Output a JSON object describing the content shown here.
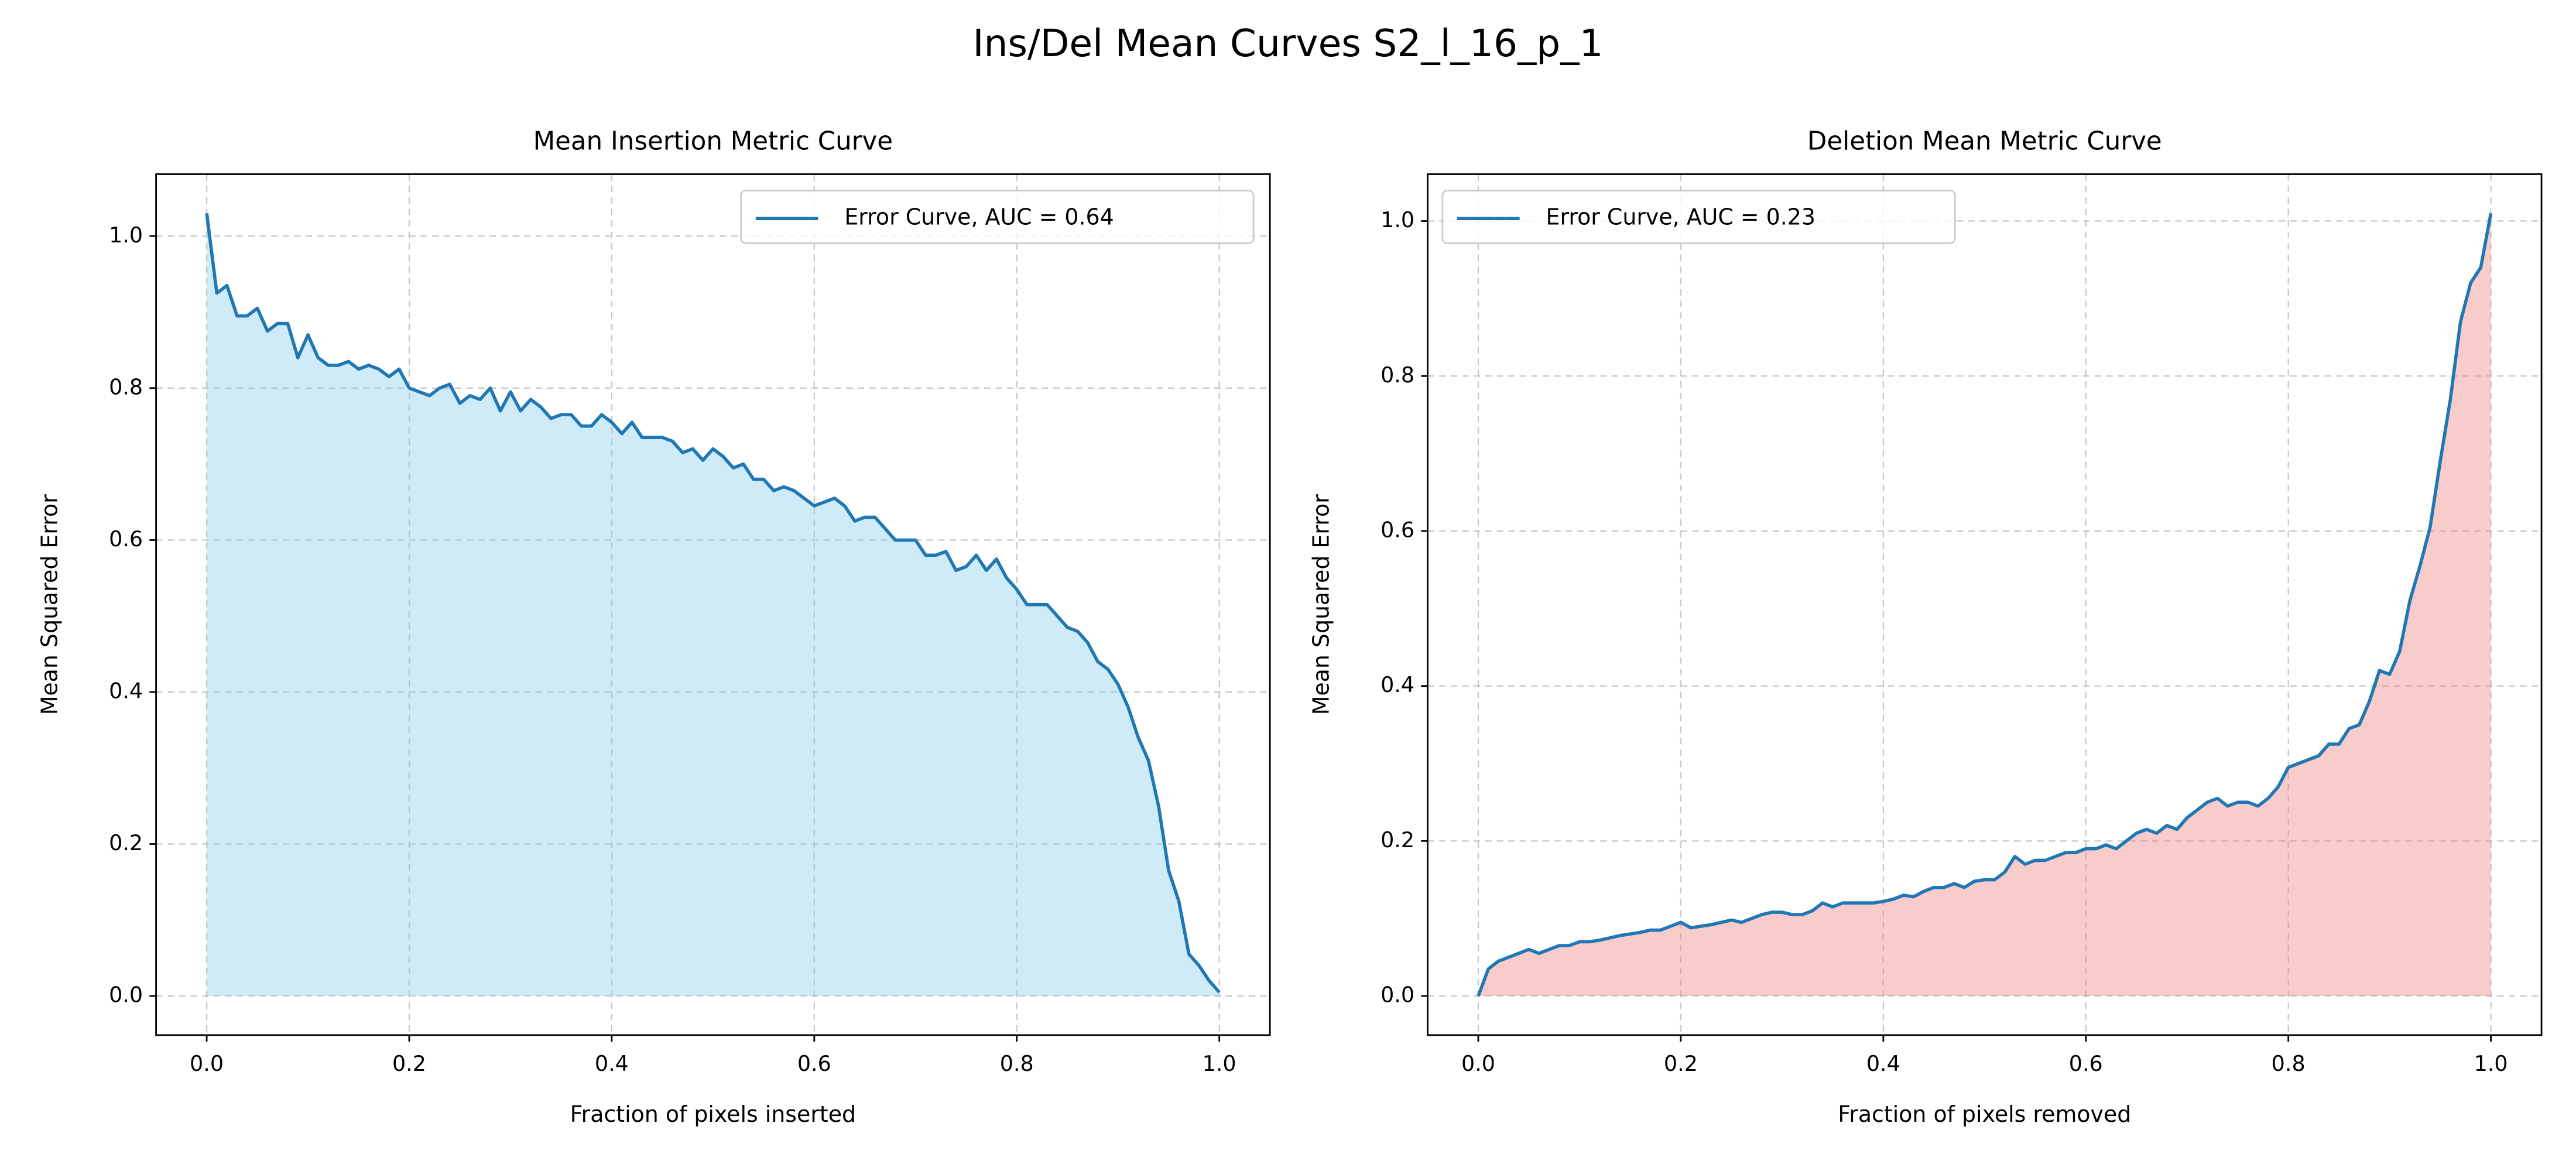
{
  "title": "Ins/Del Mean Curves S2_l_16_p_1",
  "chart_data": [
    {
      "type": "line",
      "title": "Mean Insertion Metric Curve",
      "x_label": "Fraction of pixels inserted",
      "y_label": "Mean Squared Error",
      "x": [
        0,
        0.01,
        0.02,
        0.03,
        0.04,
        0.05,
        0.06,
        0.07,
        0.08,
        0.09,
        0.1,
        0.11,
        0.12,
        0.13,
        0.14,
        0.15,
        0.16,
        0.17,
        0.18,
        0.19,
        0.2,
        0.21,
        0.22,
        0.23,
        0.24,
        0.25,
        0.26,
        0.27,
        0.28,
        0.29,
        0.3,
        0.31,
        0.32,
        0.33,
        0.34,
        0.35,
        0.36,
        0.37,
        0.38,
        0.39,
        0.4,
        0.41,
        0.42,
        0.43,
        0.44,
        0.45,
        0.46,
        0.47,
        0.48,
        0.49,
        0.5,
        0.51,
        0.52,
        0.53,
        0.54,
        0.55,
        0.56,
        0.57,
        0.58,
        0.59,
        0.6,
        0.61,
        0.62,
        0.63,
        0.64,
        0.65,
        0.66,
        0.67,
        0.68,
        0.69,
        0.7,
        0.71,
        0.72,
        0.73,
        0.74,
        0.75,
        0.76,
        0.77,
        0.78,
        0.79,
        0.8,
        0.81,
        0.82,
        0.83,
        0.84,
        0.85,
        0.86,
        0.87,
        0.88,
        0.89,
        0.9,
        0.91,
        0.92,
        0.93,
        0.94,
        0.95,
        0.96,
        0.97,
        0.98,
        0.99,
        1
      ],
      "series": [
        {
          "name": "Error Curve, AUC = 0.64",
          "color": "#1f77b4",
          "fill_color": "#87ceeb",
          "values": [
            1.03,
            0.925,
            0.935,
            0.895,
            0.895,
            0.905,
            0.875,
            0.885,
            0.885,
            0.84,
            0.87,
            0.84,
            0.83,
            0.83,
            0.835,
            0.825,
            0.83,
            0.825,
            0.815,
            0.825,
            0.8,
            0.795,
            0.79,
            0.8,
            0.805,
            0.78,
            0.79,
            0.785,
            0.8,
            0.77,
            0.795,
            0.77,
            0.785,
            0.775,
            0.76,
            0.765,
            0.765,
            0.75,
            0.75,
            0.765,
            0.755,
            0.74,
            0.755,
            0.735,
            0.735,
            0.735,
            0.73,
            0.715,
            0.72,
            0.705,
            0.72,
            0.71,
            0.695,
            0.7,
            0.68,
            0.68,
            0.665,
            0.67,
            0.665,
            0.655,
            0.645,
            0.65,
            0.655,
            0.645,
            0.625,
            0.63,
            0.63,
            0.615,
            0.6,
            0.6,
            0.6,
            0.58,
            0.58,
            0.585,
            0.56,
            0.565,
            0.58,
            0.56,
            0.575,
            0.55,
            0.535,
            0.515,
            0.515,
            0.515,
            0.5,
            0.485,
            0.48,
            0.465,
            0.44,
            0.43,
            0.41,
            0.38,
            0.34,
            0.31,
            0.25,
            0.165,
            0.125,
            0.055,
            0.04,
            0.02,
            0.005
          ]
        }
      ],
      "xlim": [
        -0.05,
        1.05
      ],
      "ylim": [
        -0.0515,
        1.0815
      ],
      "xticks": [
        {
          "value": 0,
          "label": "0.0"
        },
        0.2,
        0.4,
        0.6,
        0.8,
        {
          "value": 1,
          "label": "1.0"
        }
      ],
      "yticks": [
        {
          "value": 0,
          "label": "0.0"
        },
        0.2,
        0.4,
        0.6,
        0.8,
        {
          "value": 1,
          "label": "1.0"
        }
      ],
      "grid": true,
      "legend": "upper-right"
    },
    {
      "type": "line",
      "title": "Deletion Mean Metric Curve",
      "x_label": "Fraction of pixels removed",
      "y_label": "Mean Squared Error",
      "x": [
        0,
        0.01,
        0.02,
        0.03,
        0.04,
        0.05,
        0.06,
        0.07,
        0.08,
        0.09,
        0.1,
        0.11,
        0.12,
        0.13,
        0.14,
        0.15,
        0.16,
        0.17,
        0.18,
        0.19,
        0.2,
        0.21,
        0.22,
        0.23,
        0.24,
        0.25,
        0.26,
        0.27,
        0.28,
        0.29,
        0.3,
        0.31,
        0.32,
        0.33,
        0.34,
        0.35,
        0.36,
        0.37,
        0.38,
        0.39,
        0.4,
        0.41,
        0.42,
        0.43,
        0.44,
        0.45,
        0.46,
        0.47,
        0.48,
        0.49,
        0.5,
        0.51,
        0.52,
        0.53,
        0.54,
        0.55,
        0.56,
        0.57,
        0.58,
        0.59,
        0.6,
        0.61,
        0.62,
        0.63,
        0.64,
        0.65,
        0.66,
        0.67,
        0.68,
        0.69,
        0.7,
        0.71,
        0.72,
        0.73,
        0.74,
        0.75,
        0.76,
        0.77,
        0.78,
        0.79,
        0.8,
        0.81,
        0.82,
        0.83,
        0.84,
        0.85,
        0.86,
        0.87,
        0.88,
        0.89,
        0.9,
        0.91,
        0.92,
        0.93,
        0.94,
        0.95,
        0.96,
        0.97,
        0.98,
        0.99,
        1
      ],
      "series": [
        {
          "name": "Error Curve, AUC = 0.23",
          "color": "#1f77b4",
          "fill_color": "#f08080",
          "values": [
            0,
            0.035,
            0.045,
            0.05,
            0.055,
            0.06,
            0.055,
            0.06,
            0.065,
            0.065,
            0.07,
            0.07,
            0.072,
            0.075,
            0.078,
            0.08,
            0.082,
            0.085,
            0.085,
            0.09,
            0.095,
            0.088,
            0.09,
            0.092,
            0.095,
            0.098,
            0.095,
            0.1,
            0.105,
            0.108,
            0.108,
            0.105,
            0.105,
            0.11,
            0.12,
            0.115,
            0.12,
            0.12,
            0.12,
            0.12,
            0.122,
            0.125,
            0.13,
            0.128,
            0.135,
            0.14,
            0.14,
            0.145,
            0.14,
            0.148,
            0.15,
            0.15,
            0.16,
            0.18,
            0.17,
            0.175,
            0.175,
            0.18,
            0.185,
            0.185,
            0.19,
            0.19,
            0.195,
            0.19,
            0.2,
            0.21,
            0.215,
            0.21,
            0.22,
            0.215,
            0.23,
            0.24,
            0.25,
            0.255,
            0.245,
            0.25,
            0.25,
            0.245,
            0.255,
            0.27,
            0.295,
            0.3,
            0.305,
            0.31,
            0.325,
            0.325,
            0.345,
            0.35,
            0.38,
            0.42,
            0.415,
            0.445,
            0.51,
            0.555,
            0.605,
            0.69,
            0.77,
            0.87,
            0.92,
            0.94,
            1.01
          ]
        }
      ],
      "xlim": [
        -0.05,
        1.05
      ],
      "ylim": [
        -0.0505,
        1.0605
      ],
      "xticks": [
        {
          "value": 0,
          "label": "0.0"
        },
        0.2,
        0.4,
        0.6,
        0.8,
        {
          "value": 1,
          "label": "1.0"
        }
      ],
      "yticks": [
        {
          "value": 0,
          "label": "0.0"
        },
        0.2,
        0.4,
        0.6,
        0.8,
        {
          "value": 1,
          "label": "1.0"
        }
      ],
      "grid": true,
      "legend": "upper-left"
    }
  ]
}
